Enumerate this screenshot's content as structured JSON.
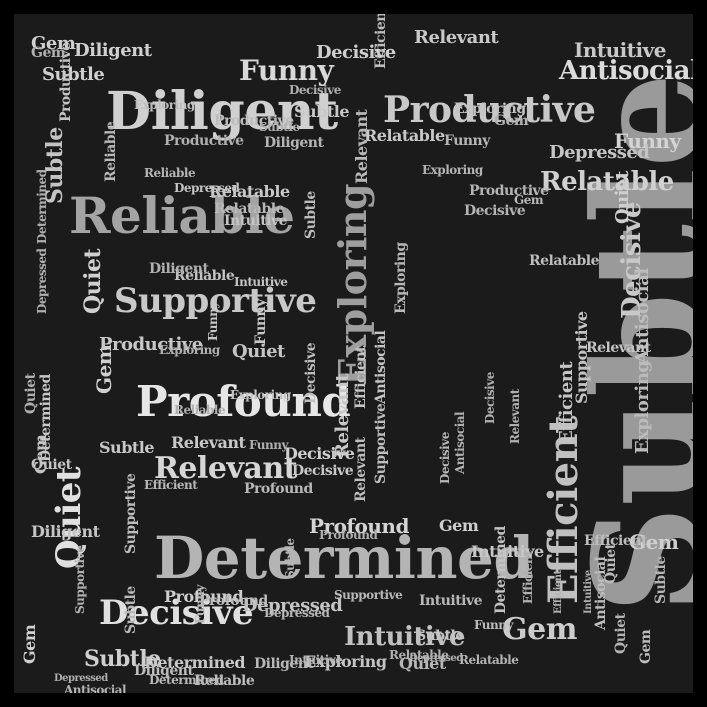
{
  "colors": {
    "background": "#1b1b1b",
    "frame": "#000000"
  },
  "words": [
    {
      "text": "Subtle",
      "tone": "#9a9a9a"
    },
    {
      "text": "Determined",
      "tone": "#b4b4b4"
    },
    {
      "text": "Diligent",
      "tone": "#d0d0d0"
    },
    {
      "text": "Reliable",
      "tone": "#a4a4a4"
    },
    {
      "text": "Profound",
      "tone": "#e6e6e6"
    },
    {
      "text": "Productive",
      "tone": "#c8c8c8"
    },
    {
      "text": "Efficient",
      "tone": "#c0c0c0"
    },
    {
      "text": "Exploring",
      "tone": "#9e9e9e"
    },
    {
      "text": "Supportive",
      "tone": "#c8c8c8"
    },
    {
      "text": "Decisive",
      "tone": "#e0e0e0"
    },
    {
      "text": "Relevant",
      "tone": "#d6d6d6"
    },
    {
      "text": "Quiet",
      "tone": "#e0e0e0"
    },
    {
      "text": "Gem",
      "tone": "#cccccc"
    },
    {
      "text": "Funny",
      "tone": "#d8d8d8"
    },
    {
      "text": "Antisocial",
      "tone": "#dcdcdc"
    },
    {
      "text": "Relatable",
      "tone": "#d0d0d0"
    },
    {
      "text": "Depressed",
      "tone": "#c4c4c4"
    },
    {
      "text": "Intuitive",
      "tone": "#c0c0c0"
    },
    {
      "text": "Decisive",
      "tone": "#c8c8c8"
    },
    {
      "text": "Gem",
      "tone": "#d0d0d0"
    },
    {
      "text": "Gem",
      "tone": "#d0d0d0"
    },
    {
      "text": "Diligent",
      "tone": "#cfcfcf"
    },
    {
      "text": "Subtle",
      "tone": "#cfcfcf"
    },
    {
      "text": "Funny",
      "tone": "#d4d4d4"
    },
    {
      "text": "Subtle",
      "tone": "#c4c4c4"
    },
    {
      "text": "Productive",
      "tone": "#c8c8c8"
    },
    {
      "text": "Quiet",
      "tone": "#d0d0d0"
    },
    {
      "text": "Efficient",
      "tone": "#bdbdbd"
    },
    {
      "text": "Subtle",
      "tone": "#cfcfcf"
    },
    {
      "text": "Gem",
      "tone": "#d0d0d0"
    },
    {
      "text": "Relevant",
      "tone": "#c8c8c8"
    },
    {
      "text": "Exploring",
      "tone": "#bbbbbb"
    },
    {
      "text": "Antisocial",
      "tone": "#bdbdbd"
    },
    {
      "text": "Quiet",
      "tone": "#c4c4c4"
    },
    {
      "text": "Determined",
      "tone": "#c8c8c8"
    },
    {
      "text": "Supportive",
      "tone": "#c4c4c4"
    },
    {
      "text": "Decisive",
      "tone": "#cfcfcf"
    },
    {
      "text": "Funny",
      "tone": "#c8c8c8"
    },
    {
      "text": "Profound",
      "tone": "#d4d4d4"
    },
    {
      "text": "Intuitive",
      "tone": "#c8c8c8"
    },
    {
      "text": "Relatable",
      "tone": "#c8c8c8"
    },
    {
      "text": "Depressed",
      "tone": "#c4c4c4"
    },
    {
      "text": "Exploring",
      "tone": "#c4c4c4"
    },
    {
      "text": "Relatable",
      "tone": "#c8c8c8"
    },
    {
      "text": "Intuitive",
      "tone": "#c4c4c4"
    },
    {
      "text": "Relevant",
      "tone": "#c8c8c8"
    },
    {
      "text": "Quiet",
      "tone": "#cfcfcf"
    },
    {
      "text": "Profound",
      "tone": "#cfcfcf"
    },
    {
      "text": "Decisive",
      "tone": "#cfcfcf"
    },
    {
      "text": "Exploring",
      "tone": "#c4c4c4"
    },
    {
      "text": "Efficient",
      "tone": "#c4c4c4"
    },
    {
      "text": "Diligent",
      "tone": "#c4c4c4"
    },
    {
      "text": "Relevant",
      "tone": "#c8c8c8"
    },
    {
      "text": "Subtle",
      "tone": "#c8c8c8"
    },
    {
      "text": "Gem",
      "tone": "#cfcfcf"
    },
    {
      "text": "Subtle",
      "tone": "#c8c8c8"
    },
    {
      "text": "Determined",
      "tone": "#c8c8c8"
    },
    {
      "text": "Funny",
      "tone": "#c8c8c8"
    },
    {
      "text": "Depressed",
      "tone": "#c4c4c4"
    },
    {
      "text": "Productive",
      "tone": "#c4c4c4"
    },
    {
      "text": "Antisocial",
      "tone": "#c4c4c4"
    },
    {
      "text": "Gem",
      "tone": "#cfcfcf"
    },
    {
      "text": "Relevant",
      "tone": "#c4c4c4"
    },
    {
      "text": "Efficient",
      "tone": "#c4c4c4"
    },
    {
      "text": "Supportive",
      "tone": "#bdbdbd"
    },
    {
      "text": "Intuitive",
      "tone": "#c8c8c8"
    },
    {
      "text": "Decisive",
      "tone": "#c8c8c8"
    },
    {
      "text": "Quiet",
      "tone": "#c4c4c4"
    },
    {
      "text": "Exploring",
      "tone": "#c4c4c4"
    },
    {
      "text": "Gem",
      "tone": "#c4c4c4"
    },
    {
      "text": "Subtle",
      "tone": "#bdbdbd"
    },
    {
      "text": "Reliable",
      "tone": "#c4c4c4"
    },
    {
      "text": "Intuitive",
      "tone": "#c4c4c4"
    },
    {
      "text": "Subtle",
      "tone": "#c4c4c4"
    },
    {
      "text": "Relatable",
      "tone": "#bdbdbd"
    },
    {
      "text": "Depressed",
      "tone": "#bdbdbd"
    },
    {
      "text": "Decisive",
      "tone": "#bdbdbd"
    },
    {
      "text": "Funny",
      "tone": "#bdbdbd"
    },
    {
      "text": "Determined",
      "tone": "#c4c4c4"
    },
    {
      "text": "Diligent",
      "tone": "#bdbdbd"
    },
    {
      "text": "Efficient",
      "tone": "#bdbdbd"
    },
    {
      "text": "Quiet",
      "tone": "#bdbdbd"
    },
    {
      "text": "Exploring",
      "tone": "#bdbdbd"
    },
    {
      "text": "Reliable",
      "tone": "#bdbdbd"
    },
    {
      "text": "Relevant",
      "tone": "#bdbdbd"
    },
    {
      "text": "Gem",
      "tone": "#bdbdbd"
    },
    {
      "text": "Supportive",
      "tone": "#bdbdbd"
    },
    {
      "text": "Profound",
      "tone": "#bdbdbd"
    },
    {
      "text": "Antisocial",
      "tone": "#bdbdbd"
    },
    {
      "text": "Productive",
      "tone": "#bdbdbd"
    },
    {
      "text": "Decisive",
      "tone": "#b8b8b8"
    },
    {
      "text": "Depressed",
      "tone": "#b8b8b8"
    },
    {
      "text": "Subtle",
      "tone": "#b8b8b8"
    },
    {
      "text": "Funny",
      "tone": "#b8b8b8"
    },
    {
      "text": "Intuitive",
      "tone": "#b8b8b8"
    },
    {
      "text": "Diligent",
      "tone": "#b8b8b8"
    },
    {
      "text": "Efficient",
      "tone": "#b8b8b8"
    },
    {
      "text": "Quiet",
      "tone": "#b8b8b8"
    },
    {
      "text": "Exploring",
      "tone": "#b8b8b8"
    },
    {
      "text": "Relatable",
      "tone": "#b8b8b8"
    },
    {
      "text": "Supportive",
      "tone": "#b8b8b8"
    },
    {
      "text": "Reliable",
      "tone": "#b8b8b8"
    },
    {
      "text": "Gem",
      "tone": "#b8b8b8"
    },
    {
      "text": "Relevant",
      "tone": "#b8b8b8"
    },
    {
      "text": "Determined",
      "tone": "#b8b8b8"
    },
    {
      "text": "Profound",
      "tone": "#b8b8b8"
    },
    {
      "text": "Depressed",
      "tone": "#b4b4b4"
    },
    {
      "text": "Decisive",
      "tone": "#b4b4b4"
    },
    {
      "text": "Subtle",
      "tone": "#b4b4b4"
    },
    {
      "text": "Antisocial",
      "tone": "#b4b4b4"
    },
    {
      "text": "Productive",
      "tone": "#b4b4b4"
    },
    {
      "text": "Efficient",
      "tone": "#b4b4b4"
    },
    {
      "text": "Quiet",
      "tone": "#b4b4b4"
    },
    {
      "text": "Funny",
      "tone": "#b4b4b4"
    },
    {
      "text": "Exploring",
      "tone": "#b4b4b4"
    },
    {
      "text": "Intuitive",
      "tone": "#b4b4b4"
    },
    {
      "text": "Diligent",
      "tone": "#b4b4b4"
    },
    {
      "text": "Gem",
      "tone": "#b4b4b4"
    },
    {
      "text": "Relatable",
      "tone": "#b4b4b4"
    },
    {
      "text": "Reliable",
      "tone": "#b4b4b4"
    },
    {
      "text": "Subtle",
      "tone": "#b4b4b4"
    },
    {
      "text": "Decisive",
      "tone": "#b0b0b0"
    },
    {
      "text": "Determined",
      "tone": "#b0b0b0"
    },
    {
      "text": "Depressed",
      "tone": "#b0b0b0"
    },
    {
      "text": "Antisocial",
      "tone": "#b0b0b0"
    },
    {
      "text": "Efficient",
      "tone": "#b0b0b0"
    },
    {
      "text": "Exploring",
      "tone": "#b0b0b0"
    },
    {
      "text": "Quiet",
      "tone": "#b0b0b0"
    },
    {
      "text": "Relevant",
      "tone": "#b0b0b0"
    },
    {
      "text": "Supportive",
      "tone": "#b0b0b0"
    },
    {
      "text": "Profound",
      "tone": "#b0b0b0"
    },
    {
      "text": "Productive",
      "tone": "#b0b0b0"
    },
    {
      "text": "Funny",
      "tone": "#b0b0b0"
    },
    {
      "text": "Intuitive",
      "tone": "#b0b0b0"
    },
    {
      "text": "Subtle",
      "tone": "#b0b0b0"
    },
    {
      "text": "Gem",
      "tone": "#b0b0b0"
    },
    {
      "text": "Diligent",
      "tone": "#b0b0b0"
    },
    {
      "text": "Relatable",
      "tone": "#b0b0b0"
    },
    {
      "text": "Reliable",
      "tone": "#b0b0b0"
    },
    {
      "text": "Decisive",
      "tone": "#b0b0b0"
    },
    {
      "text": "Depressed",
      "tone": "#b0b0b0"
    }
  ]
}
